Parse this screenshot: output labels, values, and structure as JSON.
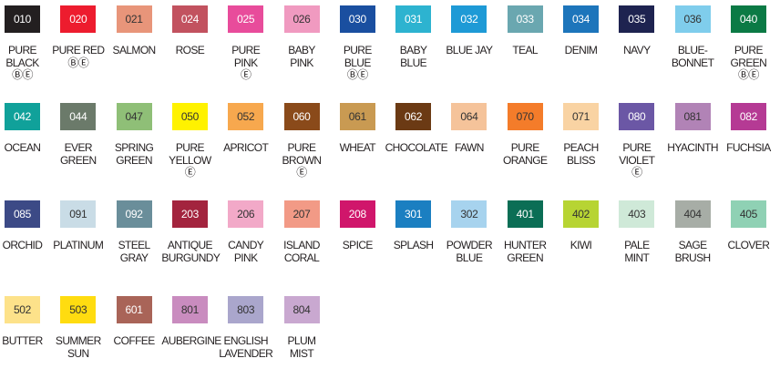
{
  "rows": [
    [
      {
        "code": "010",
        "name": [
          "PURE",
          "BLACK"
        ],
        "badges": "ⒷⒺ",
        "color": "#231f20"
      },
      {
        "code": "020",
        "name": [
          "PURE RED"
        ],
        "badges": "ⒷⒺ",
        "color": "#ed1c2e"
      },
      {
        "code": "021",
        "name": [
          "SALMON"
        ],
        "color": "#e8957a"
      },
      {
        "code": "024",
        "name": [
          "ROSE"
        ],
        "color": "#c2525f"
      },
      {
        "code": "025",
        "name": [
          "PURE",
          "PINK"
        ],
        "badges": "Ⓔ",
        "color": "#e84c9b"
      },
      {
        "code": "026",
        "name": [
          "BABY",
          "PINK"
        ],
        "color": "#f09ac0"
      },
      {
        "code": "030",
        "name": [
          "PURE",
          "BLUE"
        ],
        "badges": "ⒷⒺ",
        "color": "#1a4fa0"
      },
      {
        "code": "031",
        "name": [
          "BABY",
          "BLUE"
        ],
        "color": "#2db3d0"
      },
      {
        "code": "032",
        "name": [
          "BLUE JAY"
        ],
        "color": "#1e9ad6"
      },
      {
        "code": "033",
        "name": [
          "TEAL"
        ],
        "color": "#6aa7b0"
      },
      {
        "code": "034",
        "name": [
          "DENIM"
        ],
        "color": "#1d75bb"
      },
      {
        "code": "035",
        "name": [
          "NAVY"
        ],
        "color": "#1e2350"
      },
      {
        "code": "036",
        "name": [
          "BLUE-",
          "BONNET"
        ],
        "color": "#7fcdec"
      },
      {
        "code": "040",
        "name": [
          "PURE",
          "GREEN"
        ],
        "badges": "ⒷⒺ",
        "color": "#0b7a45"
      }
    ],
    [
      {
        "code": "042",
        "name": [
          "OCEAN"
        ],
        "color": "#10a19a"
      },
      {
        "code": "044",
        "name": [
          "EVER",
          "GREEN"
        ],
        "color": "#6b7a6a"
      },
      {
        "code": "047",
        "name": [
          "SPRING",
          "GREEN"
        ],
        "color": "#8fbf77"
      },
      {
        "code": "050",
        "name": [
          "PURE",
          "YELLOW"
        ],
        "badges": "Ⓔ",
        "color": "#fff200"
      },
      {
        "code": "052",
        "name": [
          "APRICOT"
        ],
        "color": "#f7a84e"
      },
      {
        "code": "060",
        "name": [
          "PURE",
          "BROWN"
        ],
        "badges": "Ⓔ",
        "color": "#8a4a1a"
      },
      {
        "code": "061",
        "name": [
          "WHEAT"
        ],
        "color": "#c99a52"
      },
      {
        "code": "062",
        "name": [
          "CHOCOLATE"
        ],
        "color": "#6b3a14"
      },
      {
        "code": "064",
        "name": [
          "FAWN"
        ],
        "color": "#f5c39a"
      },
      {
        "code": "070",
        "name": [
          "PURE",
          "ORANGE"
        ],
        "color": "#f47c2a"
      },
      {
        "code": "071",
        "name": [
          "PEACH",
          "BLISS"
        ],
        "color": "#f9d3a3"
      },
      {
        "code": "080",
        "name": [
          "PURE",
          "VIOLET"
        ],
        "badges": "Ⓔ",
        "color": "#6b57a5"
      },
      {
        "code": "081",
        "name": [
          "HYACINTH"
        ],
        "color": "#b183b6"
      },
      {
        "code": "082",
        "name": [
          "FUCHSIA"
        ],
        "color": "#b53a94"
      }
    ],
    [
      {
        "code": "085",
        "name": [
          "ORCHID"
        ],
        "color": "#3c4a86"
      },
      {
        "code": "091",
        "name": [
          "PLATINUM"
        ],
        "color": "#c9dce6"
      },
      {
        "code": "092",
        "name": [
          "STEEL",
          "GRAY"
        ],
        "color": "#6a8e9a"
      },
      {
        "code": "203",
        "name": [
          "ANTIQUE",
          "BURGUNDY"
        ],
        "color": "#a3243e"
      },
      {
        "code": "206",
        "name": [
          "CANDY",
          "PINK"
        ],
        "color": "#f2a9c8"
      },
      {
        "code": "207",
        "name": [
          "ISLAND",
          "CORAL"
        ],
        "color": "#f29a86"
      },
      {
        "code": "208",
        "name": [
          "SPICE"
        ],
        "color": "#d0166b"
      },
      {
        "code": "301",
        "name": [
          "SPLASH"
        ],
        "color": "#1b7fc1"
      },
      {
        "code": "302",
        "name": [
          "POWDER",
          "BLUE"
        ],
        "color": "#a7d3ee"
      },
      {
        "code": "401",
        "name": [
          "HUNTER",
          "GREEN"
        ],
        "color": "#0b6e55"
      },
      {
        "code": "402",
        "name": [
          "KIWI"
        ],
        "color": "#b7d433"
      },
      {
        "code": "403",
        "name": [
          "PALE",
          "MINT"
        ],
        "color": "#cfe9d8"
      },
      {
        "code": "404",
        "name": [
          "SAGE",
          "BRUSH"
        ],
        "color": "#a7ada6"
      },
      {
        "code": "405",
        "name": [
          "CLOVER"
        ],
        "color": "#8fd1b4"
      }
    ],
    [
      {
        "code": "502",
        "name": [
          "BUTTER"
        ],
        "color": "#fde28a"
      },
      {
        "code": "503",
        "name": [
          "SUMMER",
          "SUN"
        ],
        "color": "#ffdc10"
      },
      {
        "code": "601",
        "name": [
          "COFFEE"
        ],
        "color": "#a96458"
      },
      {
        "code": "801",
        "name": [
          "AUBERGINE"
        ],
        "color": "#c98cbf"
      },
      {
        "code": "803",
        "name": [
          "ENGLISH",
          "LAVENDER"
        ],
        "color": "#aaa6cc"
      },
      {
        "code": "804",
        "name": [
          "PLUM",
          "MIST"
        ],
        "color": "#c9a8d0"
      }
    ]
  ]
}
